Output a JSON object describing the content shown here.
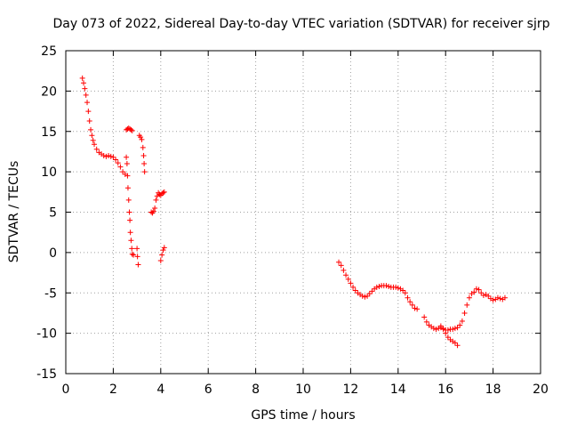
{
  "chart_data": {
    "type": "scatter",
    "title": "Day 073 of 2022, Sidereal Day-to-day VTEC variation (SDTVAR) for receiver sjrp",
    "xlabel": "GPS time / hours",
    "ylabel": "SDTVAR / TECUs",
    "xlim": [
      0,
      20
    ],
    "ylim": [
      -15,
      25
    ],
    "xticks": [
      "0",
      "2",
      "4",
      "6",
      "8",
      "10",
      "12",
      "14",
      "16",
      "18",
      "20"
    ],
    "yticks": [
      "25",
      "20",
      "15",
      "10",
      "5",
      "0",
      "-5",
      "-10",
      "-15"
    ],
    "grid": true,
    "marker": "+",
    "color": "#ff0000",
    "series": [
      {
        "name": "segment-1",
        "points": [
          [
            0.7,
            21.6
          ],
          [
            0.75,
            21.0
          ],
          [
            0.8,
            20.3
          ],
          [
            0.85,
            19.5
          ],
          [
            0.9,
            18.6
          ],
          [
            0.95,
            17.5
          ],
          [
            1.0,
            16.3
          ],
          [
            1.05,
            15.2
          ],
          [
            1.1,
            14.5
          ],
          [
            1.15,
            13.9
          ],
          [
            1.2,
            13.4
          ],
          [
            1.3,
            12.8
          ],
          [
            1.4,
            12.4
          ],
          [
            1.5,
            12.2
          ],
          [
            1.6,
            12.0
          ],
          [
            1.7,
            11.9
          ],
          [
            1.8,
            12.0
          ],
          [
            1.9,
            11.9
          ],
          [
            2.0,
            11.8
          ],
          [
            2.1,
            11.5
          ],
          [
            2.2,
            11.1
          ],
          [
            2.3,
            10.6
          ],
          [
            2.4,
            10.0
          ],
          [
            2.5,
            9.7
          ]
        ]
      },
      {
        "name": "segment-2",
        "points": [
          [
            2.55,
            11.8
          ],
          [
            2.58,
            11.0
          ],
          [
            2.6,
            9.5
          ],
          [
            2.62,
            8.0
          ],
          [
            2.65,
            6.5
          ],
          [
            2.68,
            5.0
          ],
          [
            2.7,
            4.0
          ],
          [
            2.72,
            2.5
          ],
          [
            2.75,
            1.5
          ],
          [
            2.78,
            0.5
          ],
          [
            2.8,
            -0.2
          ],
          [
            2.85,
            -0.3
          ]
        ]
      },
      {
        "name": "segment-3",
        "points": [
          [
            2.55,
            15.2
          ],
          [
            2.6,
            15.3
          ],
          [
            2.65,
            15.4
          ],
          [
            2.7,
            15.3
          ],
          [
            2.75,
            15.2
          ],
          [
            2.8,
            15.1
          ]
        ]
      },
      {
        "name": "segment-4",
        "points": [
          [
            3.0,
            0.5
          ],
          [
            3.02,
            -0.5
          ],
          [
            3.05,
            -1.5
          ]
        ]
      },
      {
        "name": "segment-5",
        "points": [
          [
            3.1,
            14.5
          ],
          [
            3.15,
            14.3
          ],
          [
            3.2,
            14.0
          ],
          [
            3.25,
            13.0
          ],
          [
            3.28,
            12.0
          ],
          [
            3.3,
            11.0
          ],
          [
            3.32,
            10.0
          ]
        ]
      },
      {
        "name": "segment-6",
        "points": [
          [
            3.6,
            5.0
          ],
          [
            3.65,
            4.9
          ],
          [
            3.7,
            5.1
          ],
          [
            3.75,
            5.5
          ],
          [
            3.8,
            6.5
          ],
          [
            3.85,
            7.0
          ],
          [
            3.9,
            7.4
          ],
          [
            3.95,
            7.2
          ],
          [
            4.0,
            7.1
          ],
          [
            4.05,
            7.3
          ],
          [
            4.1,
            7.4
          ],
          [
            4.15,
            7.5
          ]
        ]
      },
      {
        "name": "segment-7",
        "points": [
          [
            4.0,
            -1.0
          ],
          [
            4.05,
            -0.3
          ],
          [
            4.1,
            0.3
          ],
          [
            4.15,
            0.6
          ]
        ]
      },
      {
        "name": "segment-8",
        "points": [
          [
            11.5,
            -1.2
          ],
          [
            11.6,
            -1.6
          ],
          [
            11.7,
            -2.2
          ],
          [
            11.8,
            -2.8
          ],
          [
            11.9,
            -3.3
          ],
          [
            12.0,
            -3.8
          ],
          [
            12.1,
            -4.3
          ],
          [
            12.2,
            -4.7
          ],
          [
            12.3,
            -5.0
          ],
          [
            12.4,
            -5.2
          ],
          [
            12.5,
            -5.4
          ],
          [
            12.6,
            -5.5
          ],
          [
            12.7,
            -5.4
          ],
          [
            12.8,
            -5.1
          ],
          [
            12.9,
            -4.8
          ],
          [
            13.0,
            -4.5
          ],
          [
            13.1,
            -4.3
          ],
          [
            13.2,
            -4.2
          ],
          [
            13.3,
            -4.1
          ],
          [
            13.4,
            -4.1
          ],
          [
            13.5,
            -4.1
          ],
          [
            13.6,
            -4.2
          ],
          [
            13.7,
            -4.3
          ],
          [
            13.8,
            -4.3
          ],
          [
            13.9,
            -4.3
          ],
          [
            14.0,
            -4.4
          ],
          [
            14.1,
            -4.5
          ],
          [
            14.2,
            -4.7
          ],
          [
            14.3,
            -5.0
          ],
          [
            14.4,
            -5.6
          ],
          [
            14.5,
            -6.1
          ],
          [
            14.6,
            -6.5
          ],
          [
            14.7,
            -6.9
          ],
          [
            14.8,
            -7.0
          ]
        ]
      },
      {
        "name": "segment-9",
        "points": [
          [
            15.1,
            -8.0
          ],
          [
            15.2,
            -8.6
          ],
          [
            15.3,
            -9.0
          ],
          [
            15.4,
            -9.2
          ],
          [
            15.5,
            -9.4
          ],
          [
            15.6,
            -9.5
          ],
          [
            15.7,
            -9.4
          ],
          [
            15.8,
            -9.3
          ],
          [
            15.9,
            -9.4
          ],
          [
            16.0,
            -9.6
          ],
          [
            16.1,
            -9.6
          ],
          [
            16.2,
            -9.5
          ],
          [
            16.3,
            -9.5
          ],
          [
            16.4,
            -9.4
          ],
          [
            16.5,
            -9.3
          ],
          [
            16.6,
            -9.0
          ],
          [
            16.7,
            -8.5
          ],
          [
            16.8,
            -7.5
          ],
          [
            16.9,
            -6.5
          ],
          [
            17.0,
            -5.6
          ],
          [
            17.1,
            -5.1
          ],
          [
            17.2,
            -4.9
          ]
        ]
      },
      {
        "name": "segment-10",
        "points": [
          [
            15.8,
            -9.1
          ],
          [
            15.9,
            -9.5
          ],
          [
            16.0,
            -10.0
          ],
          [
            16.1,
            -10.5
          ],
          [
            16.2,
            -10.8
          ],
          [
            16.3,
            -11.0
          ],
          [
            16.4,
            -11.2
          ],
          [
            16.5,
            -11.5
          ]
        ]
      },
      {
        "name": "segment-11",
        "points": [
          [
            17.3,
            -4.5
          ],
          [
            17.4,
            -4.6
          ],
          [
            17.5,
            -5.0
          ],
          [
            17.6,
            -5.3
          ],
          [
            17.7,
            -5.2
          ],
          [
            17.8,
            -5.4
          ],
          [
            17.9,
            -5.7
          ],
          [
            18.0,
            -5.9
          ],
          [
            18.1,
            -5.8
          ],
          [
            18.2,
            -5.6
          ],
          [
            18.3,
            -5.7
          ],
          [
            18.4,
            -5.8
          ],
          [
            18.5,
            -5.6
          ]
        ]
      }
    ]
  }
}
